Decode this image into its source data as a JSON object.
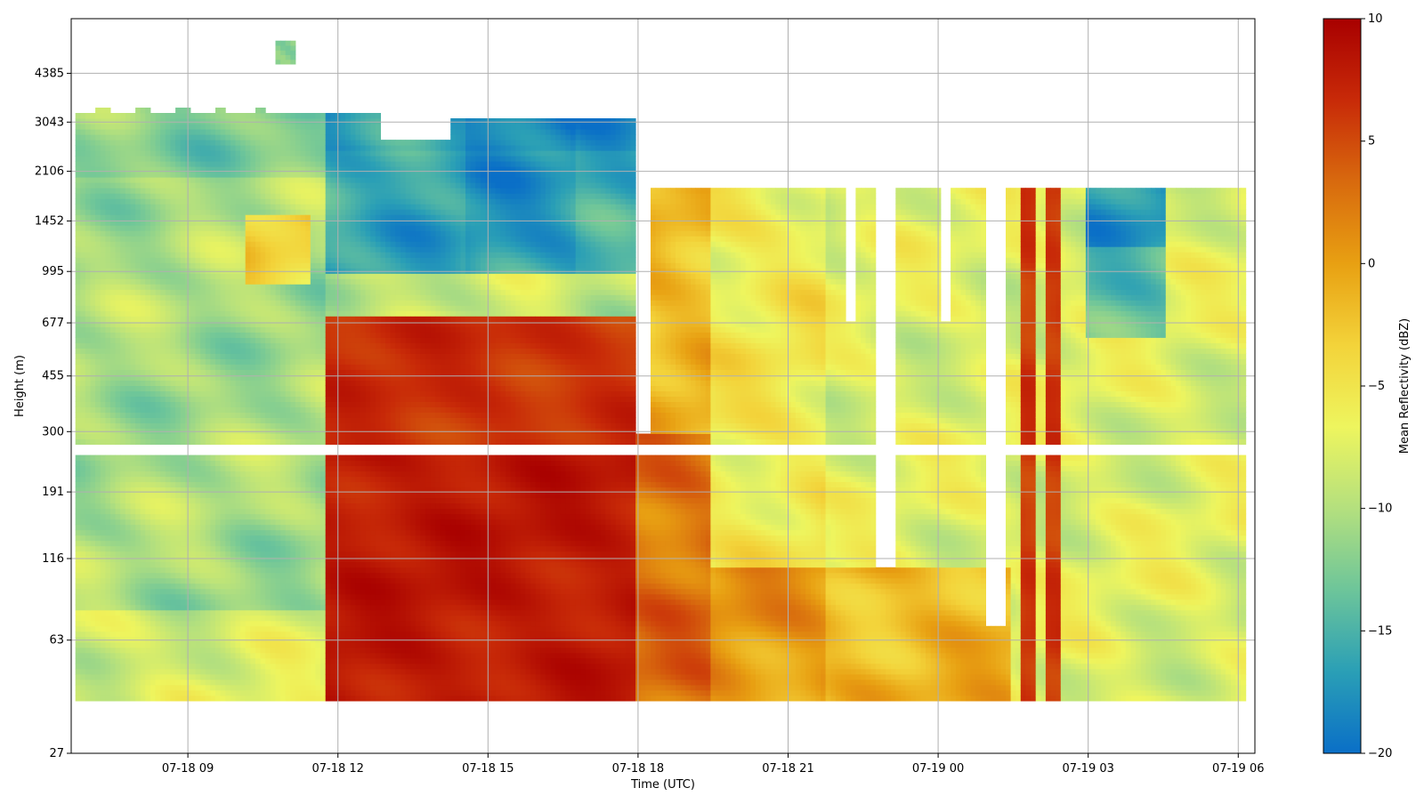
{
  "chart_data": {
    "type": "heatmap",
    "title": "",
    "xlabel": "Time (UTC)",
    "ylabel": "Height (m)",
    "x_range": [
      "07-18 06:40",
      "07-19 06:20"
    ],
    "y_scale": "log",
    "x_ticks": [
      "07-18 09",
      "07-18 12",
      "07-18 15",
      "07-18 18",
      "07-18 21",
      "07-19 00",
      "07-19 03",
      "07-19 06"
    ],
    "x_tick_hours": [
      9,
      12,
      15,
      18,
      21,
      24,
      27,
      30
    ],
    "y_ticks": [
      "27",
      "63",
      "116",
      "191",
      "300",
      "455",
      "677",
      "995",
      "1452",
      "2106",
      "3043",
      "4385"
    ],
    "y_tick_values": [
      27,
      63,
      116,
      191,
      300,
      455,
      677,
      995,
      1452,
      2106,
      3043,
      4385
    ],
    "grid": true,
    "colorbar": {
      "label": "Mean Reflectivity (dBZ)",
      "range": [
        -20,
        10
      ],
      "ticks": [
        "10",
        "5",
        "0",
        "−5",
        "−10",
        "−15",
        "−20"
      ],
      "tick_values": [
        10,
        5,
        0,
        -5,
        -10,
        -15,
        -20
      ],
      "colormap": [
        "#0a6fc7",
        "#2a9fb6",
        "#6dc59a",
        "#b4e07e",
        "#eef55e",
        "#f3d33a",
        "#e8a012",
        "#d86a0e",
        "#c82a08",
        "#a80000"
      ]
    },
    "notes": "Reflectivity ~-8 to -14 dBZ (green/yellow) before 12 UTC; ~-17 dBZ (blue) aloft 12-18 UTC; 5-10 dBZ (red) below ~700 m 12-18 UTC; -2 to 5 dBZ orange near 18-19 UTC; mostly -5 to -10 dBZ after 22 UTC with red streaks near 01:30 and 02:30 UTC; gap in data near 240-270 m."
  }
}
